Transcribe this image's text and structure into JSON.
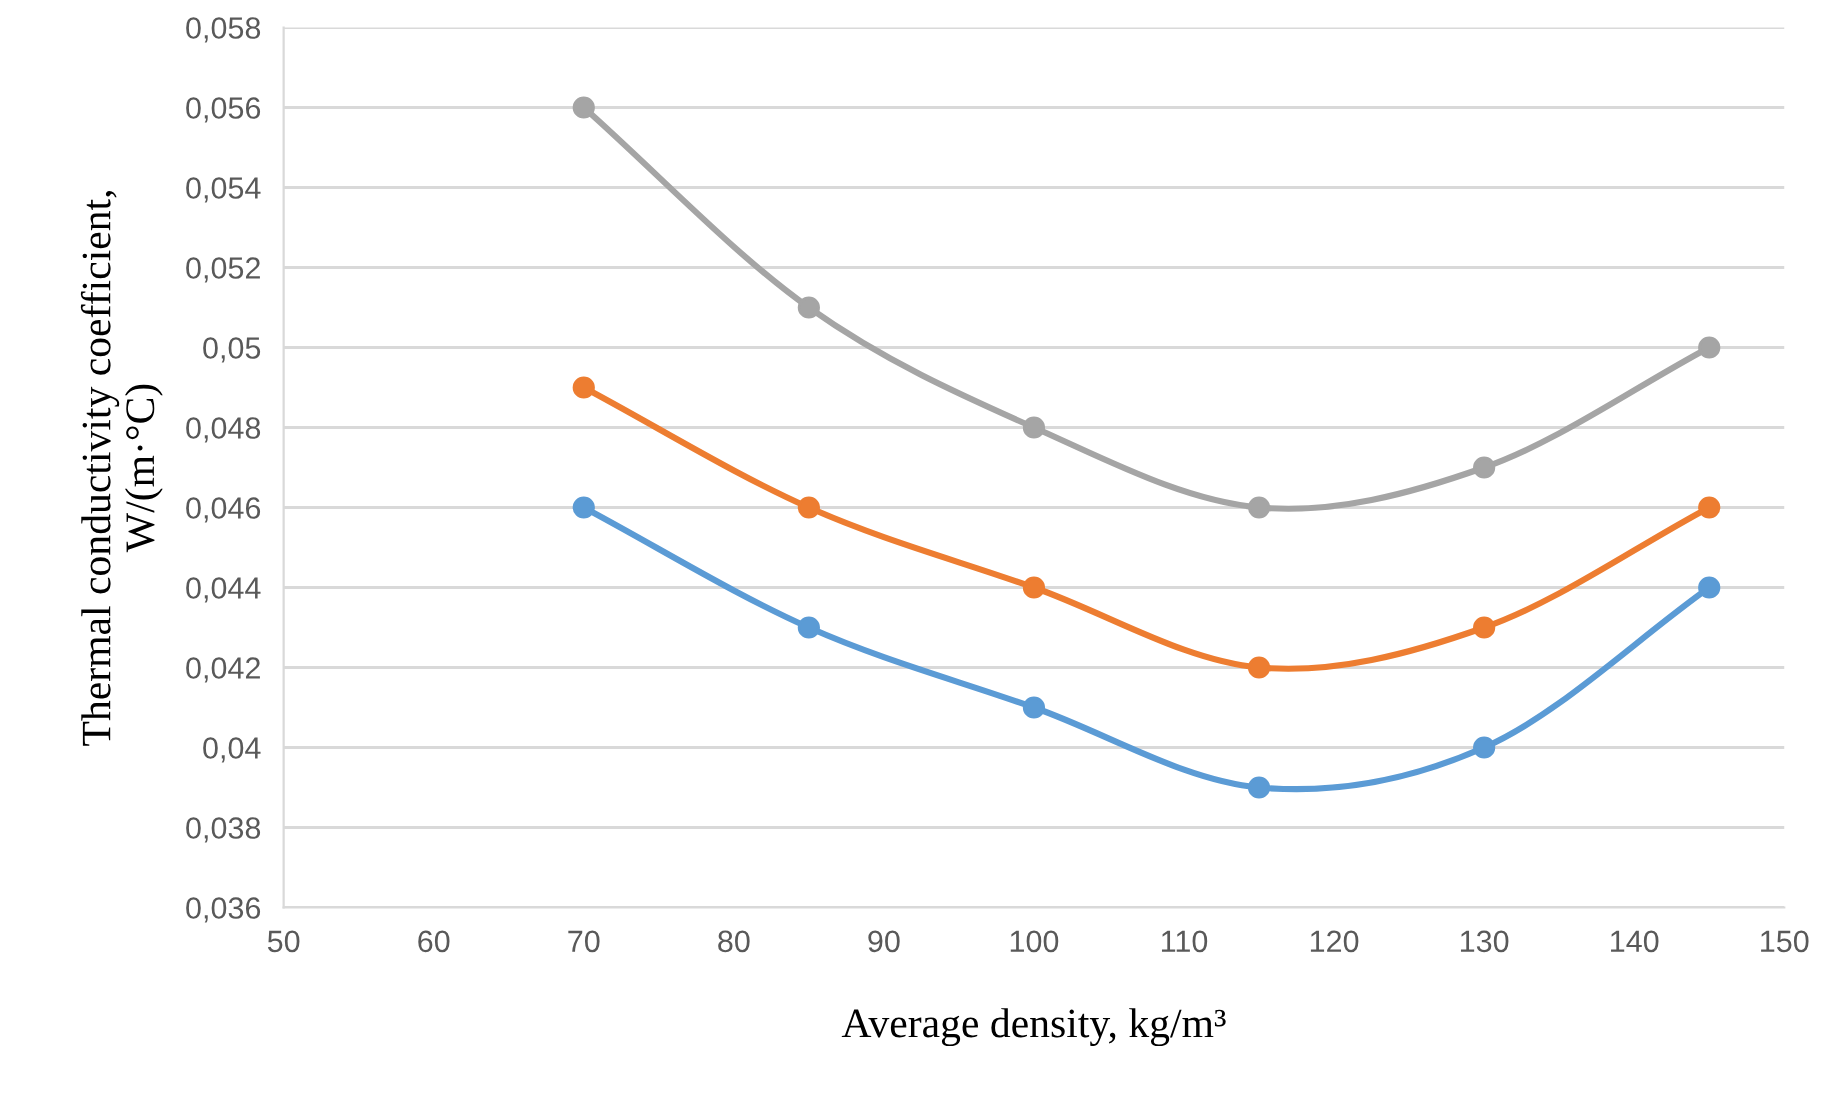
{
  "chart_data": {
    "type": "line",
    "xlabel": "Average density, kg/m³",
    "ylabel": "Thermal conductivity coefficient,\nW/(m·°C)",
    "x": [
      70,
      85,
      100,
      115,
      130,
      145
    ],
    "series": [
      {
        "color": "#5b9bd5",
        "values": [
          0.046,
          0.043,
          0.041,
          0.039,
          0.04,
          0.044
        ]
      },
      {
        "color": "#ed7d31",
        "values": [
          0.049,
          0.046,
          0.044,
          0.042,
          0.043,
          0.046
        ]
      },
      {
        "color": "#a5a5a5",
        "values": [
          0.056,
          0.051,
          0.048,
          0.046,
          0.047,
          0.05
        ]
      }
    ],
    "xlim": [
      50,
      150
    ],
    "xticks": [
      50,
      60,
      70,
      80,
      90,
      100,
      110,
      120,
      130,
      140,
      150
    ],
    "ylim": [
      0.036,
      0.058
    ],
    "yticks": [
      {
        "value": 0.036,
        "label": "0,036"
      },
      {
        "value": 0.038,
        "label": "0,038"
      },
      {
        "value": 0.04,
        "label": "0,04"
      },
      {
        "value": 0.042,
        "label": "0,042"
      },
      {
        "value": 0.044,
        "label": "0,044"
      },
      {
        "value": 0.046,
        "label": "0,046"
      },
      {
        "value": 0.048,
        "label": "0,048"
      },
      {
        "value": 0.05,
        "label": "0,05"
      },
      {
        "value": 0.052,
        "label": "0,052"
      },
      {
        "value": 0.054,
        "label": "0,054"
      },
      {
        "value": 0.056,
        "label": "0,056"
      },
      {
        "value": 0.058,
        "label": "0,058"
      }
    ],
    "grid": "y",
    "legend": false,
    "marker": "circle",
    "line_style": "solid"
  }
}
